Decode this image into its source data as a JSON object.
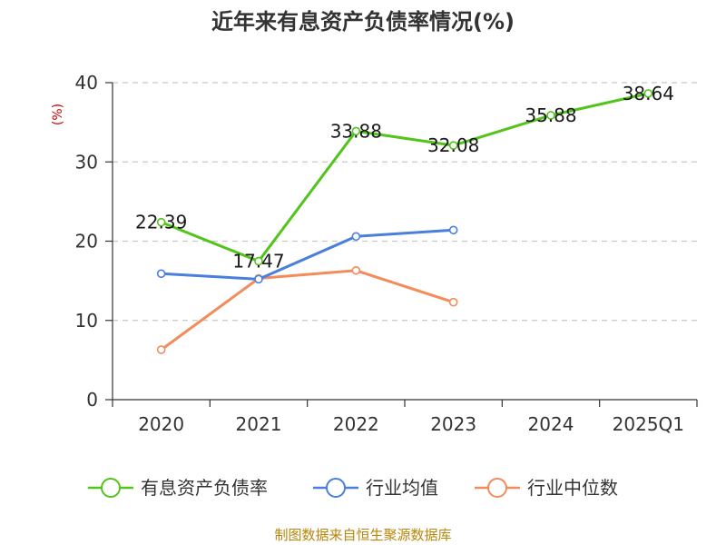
{
  "chart_data": {
    "type": "line",
    "title": "近年来有息资产负债率情况(%)",
    "ylabel": "(%)",
    "categories": [
      "2020",
      "2021",
      "2022",
      "2023",
      "2024",
      "2025Q1"
    ],
    "ylim": [
      0,
      40
    ],
    "yticks": [
      0,
      10,
      20,
      30,
      40
    ],
    "grid": true,
    "legend_position": "bottom",
    "series": [
      {
        "name": "有息资产负债率",
        "color": "#52c41a",
        "values": [
          22.39,
          17.47,
          33.88,
          32.08,
          35.88,
          38.64
        ],
        "labels": [
          "22.39",
          "17.47",
          "33.88",
          "32.08",
          "35.88",
          "38.64"
        ]
      },
      {
        "name": "行业均值",
        "color": "#4a7fdb",
        "values": [
          15.9,
          15.2,
          20.6,
          21.4,
          null,
          null
        ]
      },
      {
        "name": "行业中位数",
        "color": "#f28c5b",
        "values": [
          6.3,
          15.3,
          16.3,
          12.3,
          null,
          null
        ]
      }
    ]
  },
  "source": "制图数据来自恒生聚源数据库"
}
